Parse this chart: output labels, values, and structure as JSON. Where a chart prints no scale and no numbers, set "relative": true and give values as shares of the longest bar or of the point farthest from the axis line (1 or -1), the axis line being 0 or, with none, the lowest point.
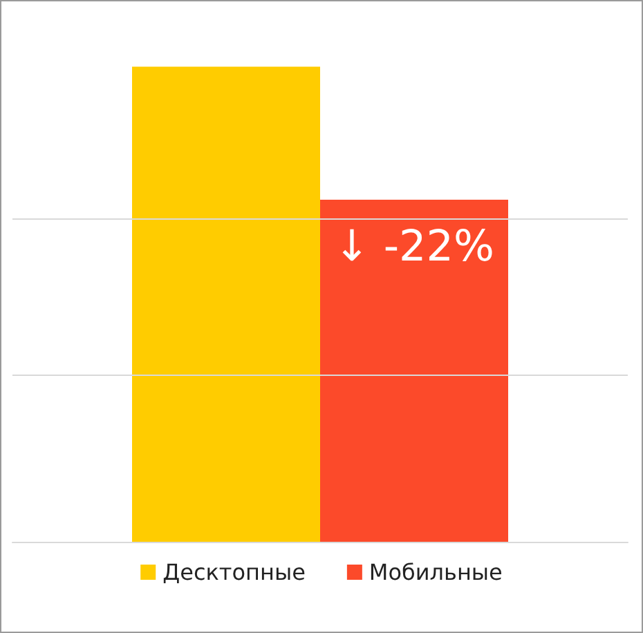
{
  "chart_data": {
    "type": "bar",
    "relative": true,
    "categories": [
      null
    ],
    "series": [
      {
        "name": "Десктопные",
        "color": "#ffcc00",
        "values": [
          1
        ]
      },
      {
        "name": "Мобильные",
        "color": "#fc4a2a",
        "values": [
          0.72
        ]
      }
    ],
    "annotations": [
      "↓ -22%"
    ],
    "legend": "bottom",
    "ref_lines": [
      {
        "axis": "y",
        "value": 0.35,
        "color": "#d9d9d9"
      },
      {
        "axis": "y",
        "value": 0.68,
        "color": "#d9d9d9"
      }
    ]
  }
}
